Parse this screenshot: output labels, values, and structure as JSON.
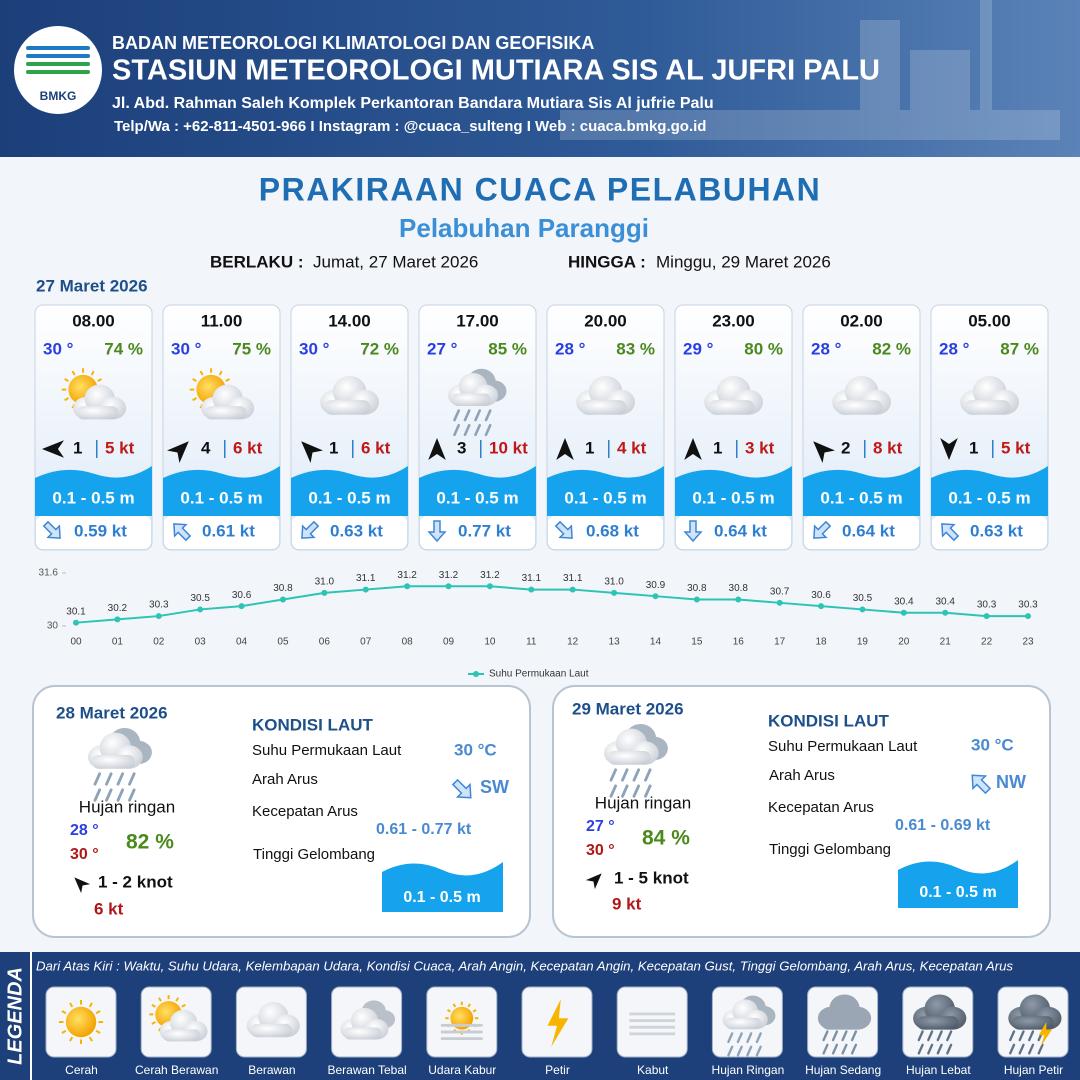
{
  "header": {
    "logo_text": "BMKG",
    "organization": "BADAN METEOROLOGI KLIMATOLOGI DAN GEOFISIKA",
    "station": "STASIUN METEOROLOGI MUTIARA SIS AL JUFRI PALU",
    "address": "Jl. Abd. Rahman Saleh Komplek Perkantoran Bandara Mutiara Sis Al jufrie Palu",
    "contact": "Telp/Wa : +62-811-4501-966  I  Instagram : @cuaca_sulteng  I  Web : cuaca.bmkg.go.id"
  },
  "title": "PRAKIRAAN CUACA PELABUHAN",
  "subtitle": "Pelabuhan Paranggi",
  "validity": {
    "from_label": "BERLAKU :",
    "from": "Jumat, 27 Maret 2026",
    "to_label": "HINGGA :",
    "to": "Minggu, 29 Maret 2026"
  },
  "day1_date": "27 Maret 2026",
  "forecasts": [
    {
      "time": "08.00",
      "temp": "30 °",
      "humidity": "74 %",
      "wind": "1",
      "gust": "5 kt",
      "wave": "0.1 - 0.5 m",
      "current": "0.59 kt"
    },
    {
      "time": "11.00",
      "temp": "30 °",
      "humidity": "75 %",
      "wind": "4",
      "gust": "6 kt",
      "wave": "0.1 - 0.5 m",
      "current": "0.61 kt"
    },
    {
      "time": "14.00",
      "temp": "30 °",
      "humidity": "72 %",
      "wind": "1",
      "gust": "6 kt",
      "wave": "0.1 - 0.5 m",
      "current": "0.63 kt"
    },
    {
      "time": "17.00",
      "temp": "27 °",
      "humidity": "85 %",
      "wind": "3",
      "gust": "10 kt",
      "wave": "0.1 - 0.5 m",
      "current": "0.77 kt"
    },
    {
      "time": "20.00",
      "temp": "28 °",
      "humidity": "83 %",
      "wind": "1",
      "gust": "4 kt",
      "wave": "0.1 - 0.5 m",
      "current": "0.68 kt"
    },
    {
      "time": "23.00",
      "temp": "29 °",
      "humidity": "80 %",
      "wind": "1",
      "gust": "3 kt",
      "wave": "0.1 - 0.5 m",
      "current": "0.64 kt"
    },
    {
      "time": "02.00",
      "temp": "28 °",
      "humidity": "82 %",
      "wind": "2",
      "gust": "8 kt",
      "wave": "0.1 - 0.5 m",
      "current": "0.64 kt"
    },
    {
      "time": "05.00",
      "temp": "28 °",
      "humidity": "87 %",
      "wind": "1",
      "gust": "5 kt",
      "wave": "0.1 - 0.5 m",
      "current": "0.63 kt"
    }
  ],
  "chart_data": {
    "type": "line",
    "categories": [
      "00",
      "01",
      "02",
      "03",
      "04",
      "05",
      "06",
      "07",
      "08",
      "09",
      "10",
      "11",
      "12",
      "13",
      "14",
      "15",
      "16",
      "17",
      "18",
      "19",
      "20",
      "21",
      "22",
      "23"
    ],
    "series": [
      {
        "name": "Suhu Permukaan Laut",
        "color": "#2cc4b4",
        "values": [
          30.1,
          30.2,
          30.3,
          30.5,
          30.6,
          30.8,
          31.0,
          31.1,
          31.2,
          31.2,
          31.2,
          31.1,
          31.1,
          31.0,
          30.9,
          30.8,
          30.8,
          30.7,
          30.6,
          30.5,
          30.4,
          30.4,
          30.3,
          30.3
        ],
        "value_labels": [
          "30.1",
          "30.2",
          "30.3",
          "30.5",
          "30.6",
          "30.8",
          "31.0",
          "31.1",
          "31.2",
          "31.2",
          "31.2",
          "31.1",
          "31.1",
          "31.0",
          "30.9",
          "30.8",
          "30.8",
          "30.7",
          "30.6",
          "30.5",
          "30.4",
          "30.4",
          "30.3",
          "30.3"
        ]
      }
    ],
    "ylim": [
      30,
      31.6
    ],
    "yticks": [
      30,
      31.6
    ]
  },
  "days": [
    {
      "date": "28 Maret 2026",
      "condition": "Hujan ringan",
      "temp_min": "28 °",
      "temp_max": "30 °",
      "humidity": "82 %",
      "wind": "1 - 2 knot",
      "gust": "6 kt",
      "section_title": "KONDISI LAUT",
      "sst_label": "Suhu Permukaan Laut",
      "sst": "30 °C",
      "current_dir_label": "Arah Arus",
      "current_dir": "SW",
      "current_speed_label": "Kecepatan Arus",
      "current_speed": "0.61  - 0.77 kt",
      "wave_label": "Tinggi Gelombang",
      "wave": "0.1 - 0.5 m"
    },
    {
      "date": "29 Maret 2026",
      "condition": "Hujan ringan",
      "temp_min": "27 °",
      "temp_max": "30 °",
      "humidity": "84 %",
      "wind": "1 - 5 knot",
      "gust": "9 kt",
      "section_title": "KONDISI LAUT",
      "sst_label": "Suhu Permukaan Laut",
      "sst": "30 °C",
      "current_dir_label": "Arah Arus",
      "current_dir": "NW",
      "current_speed_label": "Kecepatan Arus",
      "current_speed": "0.61  - 0.69 kt",
      "wave_label": "Tinggi Gelombang",
      "wave": "0.1 - 0.5 m"
    }
  ],
  "legend": {
    "label": "LEGENDA",
    "description": "Dari Atas Kiri : Waktu, Suhu Udara, Kelembapan Udara, Kondisi Cuaca, Arah Angin, Kecepatan Angin, Kecepatan Gust, Tinggi Gelombang, Arah Arus, Kecepatan Arus",
    "items": [
      "Cerah",
      "Cerah Berawan",
      "Berawan",
      "Berawan Tebal",
      "Udara Kabur",
      "Petir",
      "Kabut",
      "Hujan Ringan",
      "Hujan Sedang",
      "Hujan Lebat",
      "Hujan Petir"
    ]
  }
}
